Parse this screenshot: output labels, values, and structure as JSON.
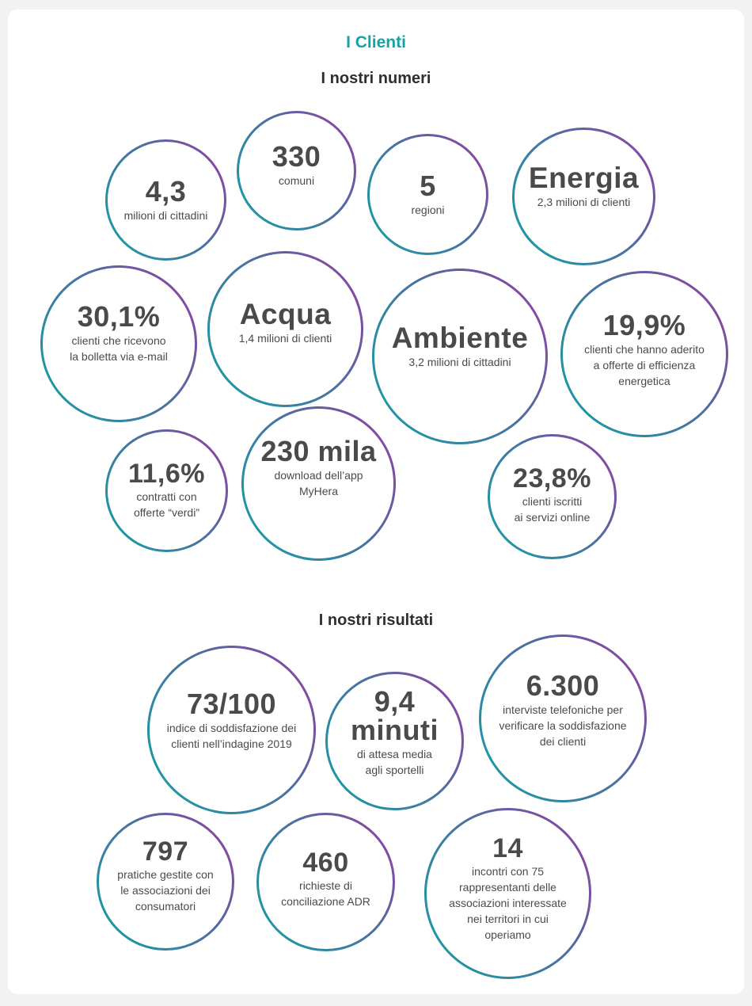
{
  "section_title": "I Clienti",
  "numbers": {
    "title": "I nostri numeri",
    "bubbles": [
      {
        "value": "4,3",
        "text": [
          "milioni di cittadini"
        ]
      },
      {
        "value": "330",
        "text": [
          "comuni"
        ]
      },
      {
        "value": "5",
        "text": [
          "regioni"
        ]
      },
      {
        "value": "Energia",
        "text": [
          "2,3 milioni di clienti"
        ]
      },
      {
        "value": "30,1%",
        "text": [
          "clienti che ricevono",
          "la bolletta via e-mail"
        ]
      },
      {
        "value": "Acqua",
        "text": [
          "1,4 milioni di clienti"
        ]
      },
      {
        "value": "Ambiente",
        "text": [
          "3,2 milioni di cittadini"
        ]
      },
      {
        "value": "19,9%",
        "text": [
          "clienti che hanno aderito",
          "a offerte di efficienza",
          "energetica"
        ]
      },
      {
        "value": "11,6%",
        "text": [
          "contratti con",
          "offerte “verdi”"
        ]
      },
      {
        "value": "230 mila",
        "text": [
          "download dell’app",
          "MyHera"
        ]
      },
      {
        "value": "23,8%",
        "text": [
          "clienti iscritti",
          "ai servizi online"
        ]
      }
    ]
  },
  "results": {
    "title": "I nostri risultati",
    "bubbles": [
      {
        "value": "73/100",
        "text": [
          "indice di soddisfazione dei",
          "clienti nell’indagine 2019"
        ]
      },
      {
        "value": "9,4",
        "value2": "minuti",
        "text": [
          "di attesa media",
          "agli sportelli"
        ]
      },
      {
        "value": "6.300",
        "text": [
          "interviste telefoniche per",
          "verificare la soddisfazione",
          "dei clienti"
        ]
      },
      {
        "value": "797",
        "text": [
          "pratiche gestite con",
          "le associazioni dei",
          "consumatori"
        ]
      },
      {
        "value": "460",
        "text": [
          "richieste di",
          "conciliazione ADR"
        ]
      },
      {
        "value": "14",
        "text": [
          "incontri con 75",
          "rappresentanti delle",
          "associazioni interessate",
          "nei territori in cui",
          "operiamo"
        ]
      }
    ]
  },
  "colors": {
    "accent": "#17a3a5",
    "ring_start": "#12a1a5",
    "ring_end": "#9a3aa2",
    "text": "#4a4a4a"
  }
}
